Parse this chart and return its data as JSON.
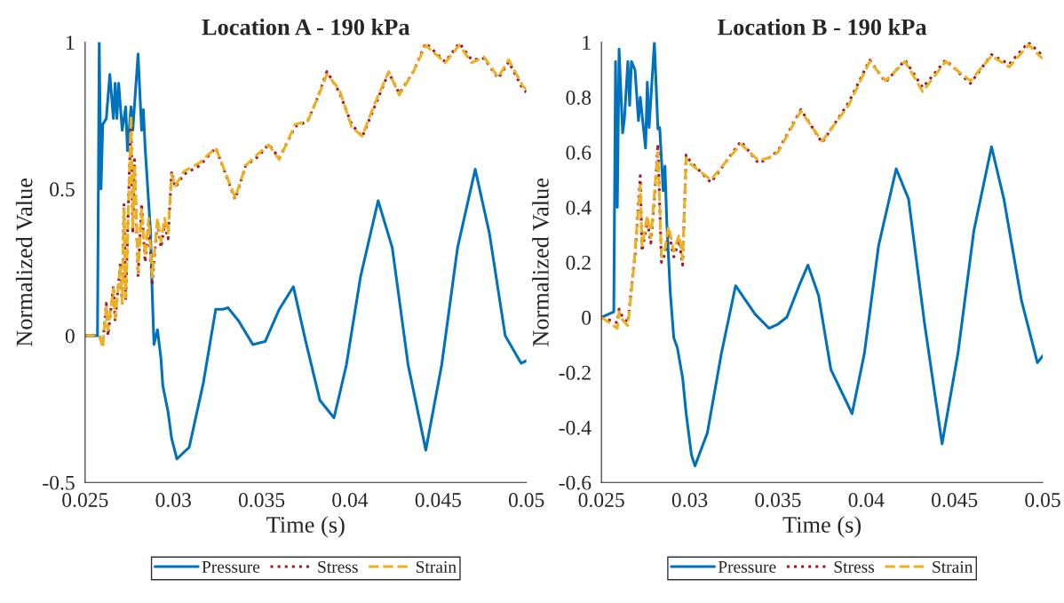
{
  "chart_data": [
    {
      "type": "line",
      "title": "Location A - 190 kPa",
      "xlabel": "Time (s)",
      "ylabel": "Normalized Value",
      "xlim": [
        0.025,
        0.05
      ],
      "xticks": [
        0.025,
        0.03,
        0.035,
        0.04,
        0.045,
        0.05
      ],
      "ylim": [
        -0.5,
        1
      ],
      "yticks": [
        -0.5,
        0,
        0.5,
        1
      ],
      "legend": "bottom",
      "series": [
        {
          "name": "Pressure",
          "color": "#0072bd",
          "line_style": "solid",
          "x": [
            0.025,
            0.0257,
            0.0258,
            0.0259,
            0.026,
            0.0261,
            0.0262,
            0.0264,
            0.0266,
            0.0267,
            0.0268,
            0.0269,
            0.0271,
            0.0273,
            0.0274,
            0.0276,
            0.0277,
            0.028,
            0.0282,
            0.0283,
            0.0284,
            0.0287,
            0.0288,
            0.0289,
            0.0291,
            0.0293,
            0.0294,
            0.0297,
            0.0299,
            0.0302,
            0.0309,
            0.0317,
            0.0324,
            0.0328,
            0.0331,
            0.0337,
            0.0345,
            0.0352,
            0.036,
            0.0368,
            0.0375,
            0.0383,
            0.0391,
            0.0398,
            0.0406,
            0.0416,
            0.0424,
            0.0433,
            0.0443,
            0.0452,
            0.0461,
            0.0471,
            0.0479,
            0.0488,
            0.0497,
            0.05
          ],
          "values": [
            0,
            0,
            1.0,
            0.5,
            0.72,
            0.73,
            0.74,
            0.89,
            0.74,
            0.86,
            0.74,
            0.86,
            0.7,
            0.78,
            0.63,
            0.78,
            0.7,
            0.96,
            0.7,
            0.77,
            0.64,
            0.36,
            0.15,
            -0.03,
            0.02,
            -0.08,
            -0.17,
            -0.26,
            -0.35,
            -0.42,
            -0.38,
            -0.16,
            0.09,
            0.09,
            0.095,
            0.05,
            -0.03,
            -0.02,
            0.09,
            0.167,
            -0.02,
            -0.22,
            -0.28,
            -0.1,
            0.2,
            0.46,
            0.3,
            -0.1,
            -0.39,
            -0.1,
            0.3,
            0.567,
            0.35,
            0.0,
            -0.094,
            -0.085
          ]
        },
        {
          "name": "Stress",
          "color": "#a2142f",
          "line_style": "dotted",
          "x": [
            0.025,
            0.0258,
            0.026,
            0.0262,
            0.0263,
            0.0266,
            0.0267,
            0.027,
            0.0271,
            0.0272,
            0.0273,
            0.0275,
            0.0276,
            0.0277,
            0.0278,
            0.028,
            0.0282,
            0.0284,
            0.0286,
            0.0288,
            0.0291,
            0.0293,
            0.0295,
            0.0297,
            0.0299,
            0.0301,
            0.0306,
            0.0315,
            0.0324,
            0.0335,
            0.0341,
            0.0348,
            0.0354,
            0.036,
            0.0369,
            0.0376,
            0.0381,
            0.0387,
            0.0394,
            0.0401,
            0.0407,
            0.0414,
            0.0422,
            0.0428,
            0.0436,
            0.0443,
            0.0454,
            0.0462,
            0.0469,
            0.0476,
            0.0484,
            0.049,
            0.0498,
            0.05
          ],
          "values": [
            0,
            0,
            -0.03,
            0.11,
            0.0,
            0.17,
            0.05,
            0.25,
            0.1,
            0.45,
            0.12,
            0.55,
            0.73,
            0.35,
            0.6,
            0.2,
            0.45,
            0.25,
            0.38,
            0.18,
            0.39,
            0.3,
            0.38,
            0.33,
            0.56,
            0.505,
            0.55,
            0.58,
            0.64,
            0.465,
            0.58,
            0.61,
            0.652,
            0.605,
            0.713,
            0.73,
            0.8,
            0.9,
            0.83,
            0.72,
            0.678,
            0.78,
            0.897,
            0.825,
            0.9,
            0.997,
            0.933,
            0.997,
            0.94,
            0.945,
            0.877,
            0.933,
            0.84,
            0.83
          ]
        },
        {
          "name": "Strain",
          "color": "#edb120",
          "line_style": "dashed",
          "x": [
            0.025,
            0.0258,
            0.026,
            0.0262,
            0.0263,
            0.0266,
            0.0267,
            0.027,
            0.0271,
            0.0272,
            0.0273,
            0.0275,
            0.0276,
            0.0277,
            0.0278,
            0.028,
            0.0282,
            0.0284,
            0.0286,
            0.0288,
            0.0291,
            0.0293,
            0.0295,
            0.0297,
            0.0299,
            0.0301,
            0.0306,
            0.0315,
            0.0324,
            0.0335,
            0.0341,
            0.0348,
            0.0354,
            0.036,
            0.0369,
            0.0376,
            0.0381,
            0.0387,
            0.0394,
            0.0401,
            0.0407,
            0.0414,
            0.0422,
            0.0428,
            0.0436,
            0.0443,
            0.0454,
            0.0462,
            0.0469,
            0.0476,
            0.0484,
            0.049,
            0.0498,
            0.05
          ],
          "values": [
            0,
            0,
            -0.04,
            0.1,
            0.02,
            0.16,
            0.06,
            0.24,
            0.11,
            0.43,
            0.13,
            0.53,
            0.75,
            0.37,
            0.58,
            0.22,
            0.43,
            0.27,
            0.4,
            0.2,
            0.4,
            0.32,
            0.4,
            0.35,
            0.55,
            0.51,
            0.56,
            0.59,
            0.64,
            0.47,
            0.58,
            0.62,
            0.65,
            0.6,
            0.72,
            0.73,
            0.8,
            0.89,
            0.84,
            0.71,
            0.68,
            0.79,
            0.9,
            0.82,
            0.9,
            0.99,
            0.93,
            0.99,
            0.93,
            0.95,
            0.88,
            0.94,
            0.85,
            0.84
          ]
        }
      ]
    },
    {
      "type": "line",
      "title": "Location B - 190 kPa",
      "xlabel": "Time (s)",
      "ylabel": "Normalized Value",
      "xlim": [
        0.025,
        0.05
      ],
      "xticks": [
        0.025,
        0.03,
        0.035,
        0.04,
        0.045,
        0.05
      ],
      "ylim": [
        -0.6,
        1
      ],
      "yticks": [
        -0.6,
        -0.4,
        -0.2,
        0,
        0.2,
        0.4,
        0.6,
        0.8,
        1
      ],
      "legend": "bottom",
      "series": [
        {
          "name": "Pressure",
          "color": "#0072bd",
          "line_style": "solid",
          "x": [
            0.025,
            0.0257,
            0.0258,
            0.0259,
            0.026,
            0.0262,
            0.0263,
            0.0265,
            0.0266,
            0.0267,
            0.0269,
            0.0271,
            0.0272,
            0.0275,
            0.0276,
            0.0277,
            0.028,
            0.0282,
            0.0283,
            0.0285,
            0.0286,
            0.0287,
            0.0289,
            0.0291,
            0.0293,
            0.0296,
            0.0298,
            0.0301,
            0.0303,
            0.031,
            0.0318,
            0.0326,
            0.0337,
            0.0345,
            0.035,
            0.0355,
            0.0362,
            0.0367,
            0.0373,
            0.038,
            0.0392,
            0.0399,
            0.0407,
            0.0417,
            0.0424,
            0.0433,
            0.0443,
            0.0452,
            0.0461,
            0.0471,
            0.0478,
            0.0488,
            0.0497,
            0.05
          ],
          "values": [
            0,
            0.02,
            0.93,
            0.4,
            0.975,
            0.67,
            0.72,
            0.93,
            0.77,
            0.93,
            0.9,
            0.715,
            0.8,
            0.615,
            0.855,
            0.69,
            1.0,
            0.685,
            0.69,
            0.46,
            0.55,
            0.35,
            0.09,
            -0.075,
            -0.11,
            -0.22,
            -0.35,
            -0.5,
            -0.54,
            -0.42,
            -0.13,
            0.115,
            0.012,
            -0.04,
            -0.025,
            0.0,
            0.115,
            0.19,
            0.08,
            -0.19,
            -0.35,
            -0.13,
            0.26,
            0.54,
            0.43,
            -0.02,
            -0.46,
            -0.13,
            0.315,
            0.62,
            0.43,
            0.06,
            -0.165,
            -0.14
          ]
        },
        {
          "name": "Stress",
          "color": "#a2142f",
          "line_style": "dotted",
          "x": [
            0.025,
            0.0259,
            0.026,
            0.0262,
            0.0265,
            0.0268,
            0.0269,
            0.0272,
            0.0273,
            0.0276,
            0.0278,
            0.028,
            0.0282,
            0.0284,
            0.0286,
            0.0288,
            0.0291,
            0.0294,
            0.0296,
            0.0298,
            0.03,
            0.0312,
            0.0329,
            0.0339,
            0.0345,
            0.035,
            0.0363,
            0.0375,
            0.039,
            0.0402,
            0.0411,
            0.0422,
            0.0432,
            0.0445,
            0.0459,
            0.0471,
            0.0481,
            0.0492,
            0.05
          ],
          "values": [
            0,
            -0.02,
            0.03,
            0.0,
            -0.02,
            0.17,
            0.22,
            0.515,
            0.24,
            0.35,
            0.27,
            0.43,
            0.63,
            0.2,
            0.23,
            0.31,
            0.22,
            0.28,
            0.19,
            0.59,
            0.57,
            0.49,
            0.64,
            0.56,
            0.58,
            0.605,
            0.755,
            0.635,
            0.78,
            0.935,
            0.855,
            0.935,
            0.835,
            0.935,
            0.85,
            0.955,
            0.92,
            1.0,
            0.95
          ]
        },
        {
          "name": "Strain",
          "color": "#edb120",
          "line_style": "dashed",
          "x": [
            0.025,
            0.0259,
            0.026,
            0.0262,
            0.0265,
            0.0268,
            0.0269,
            0.0272,
            0.0273,
            0.0276,
            0.0278,
            0.028,
            0.0282,
            0.0284,
            0.0286,
            0.0288,
            0.0291,
            0.0294,
            0.0296,
            0.0298,
            0.03,
            0.0312,
            0.0329,
            0.0339,
            0.0345,
            0.035,
            0.0363,
            0.0375,
            0.039,
            0.0402,
            0.0411,
            0.0422,
            0.0432,
            0.0445,
            0.0459,
            0.0471,
            0.0481,
            0.0492,
            0.05
          ],
          "values": [
            0,
            -0.04,
            0.02,
            -0.01,
            -0.03,
            0.16,
            0.24,
            0.48,
            0.26,
            0.37,
            0.29,
            0.45,
            0.6,
            0.22,
            0.25,
            0.33,
            0.24,
            0.3,
            0.21,
            0.58,
            0.56,
            0.5,
            0.63,
            0.57,
            0.58,
            0.6,
            0.75,
            0.64,
            0.77,
            0.93,
            0.86,
            0.93,
            0.82,
            0.93,
            0.86,
            0.95,
            0.91,
            0.99,
            0.94
          ]
        }
      ]
    }
  ]
}
